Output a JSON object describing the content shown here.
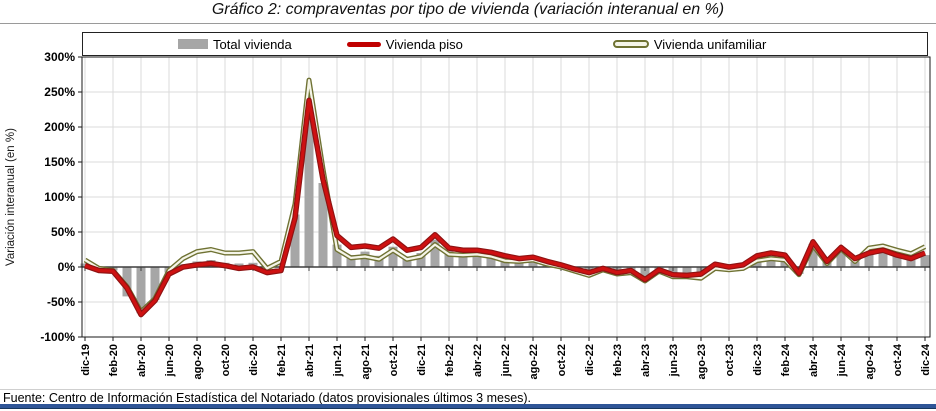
{
  "page": {
    "title": "Gráfico 2: compraventas por tipo de vivienda (variación interanual en %)",
    "footer": "Fuente: Centro de Información Estadística del Notariado (datos provisionales últimos 3 meses).",
    "accent_bar_color": "#2F5597",
    "background_color": "#FFFFFF"
  },
  "legend": {
    "position": "top",
    "items": [
      {
        "label": "Total vivienda",
        "swatch": "bar",
        "color": "#A6A6A6"
      },
      {
        "label": "Vivienda piso",
        "swatch": "thick-line",
        "color": "#C00000"
      },
      {
        "label": "Vivienda unifamiliar",
        "swatch": "outlined-line",
        "color": "#6F7233",
        "inner_color": "#F5F5E8"
      }
    ]
  },
  "chart_data": {
    "type": "bar",
    "subtype": "combo-bar-and-lines",
    "title": "Gráfico 2: compraventas por tipo de vivienda (variación interanual en %)",
    "xlabel": "",
    "ylabel": "Variación interanual (en %)",
    "ylim": [
      -100,
      300
    ],
    "ytick_step": 50,
    "ytick_labels": [
      "300%",
      "250%",
      "200%",
      "150%",
      "100%",
      "50%",
      "0%",
      "-50%",
      "-100%"
    ],
    "grid": true,
    "legend_position": "top",
    "xtick_shown_every": 2,
    "categories": [
      "dic-19",
      "ene-20",
      "feb-20",
      "mar-20",
      "abr-20",
      "may-20",
      "jun-20",
      "jul-20",
      "ago-20",
      "sep-20",
      "oct-20",
      "nov-20",
      "dic-20",
      "ene-21",
      "feb-21",
      "mar-21",
      "abr-21",
      "may-21",
      "jun-21",
      "jul-21",
      "ago-21",
      "sep-21",
      "oct-21",
      "nov-21",
      "dic-21",
      "ene-22",
      "feb-22",
      "mar-22",
      "abr-22",
      "may-22",
      "jun-22",
      "jul-22",
      "ago-22",
      "sep-22",
      "oct-22",
      "nov-22",
      "dic-22",
      "ene-23",
      "feb-23",
      "mar-23",
      "abr-23",
      "may-23",
      "jun-23",
      "jul-23",
      "ago-23",
      "sep-23",
      "oct-23",
      "nov-23",
      "dic-23",
      "ene-24",
      "feb-24",
      "mar-24",
      "abr-24",
      "may-24",
      "jun-24",
      "jul-24",
      "ago-24",
      "sep-24",
      "oct-24",
      "nov-24",
      "dic-24"
    ],
    "series": [
      {
        "name": "Total vivienda",
        "type": "bar",
        "color": "#A6A6A6",
        "values": [
          5,
          -3,
          -5,
          -42,
          -66,
          -47,
          -8,
          4,
          8,
          10,
          6,
          5,
          6,
          -2,
          0,
          75,
          235,
          120,
          32,
          17,
          22,
          16,
          29,
          15,
          20,
          39,
          23,
          22,
          21,
          18,
          12,
          10,
          12,
          6,
          2,
          -4,
          -10,
          -3,
          -9,
          -6,
          -18,
          -5,
          -12,
          -13,
          -12,
          1,
          -2,
          1,
          13,
          16,
          14,
          -10,
          33,
          7,
          22,
          8,
          19,
          20,
          15,
          10,
          17
        ]
      },
      {
        "name": "Vivienda piso",
        "type": "line",
        "color": "#C00000",
        "values": [
          2,
          -5,
          -6,
          -30,
          -68,
          -48,
          -10,
          0,
          3,
          5,
          2,
          -2,
          0,
          -8,
          -5,
          70,
          238,
          125,
          45,
          28,
          30,
          27,
          40,
          24,
          28,
          46,
          27,
          24,
          24,
          21,
          16,
          12,
          14,
          8,
          3,
          -3,
          -8,
          -2,
          -8,
          -5,
          -18,
          -4,
          -11,
          -12,
          -10,
          4,
          0,
          3,
          16,
          20,
          17,
          -9,
          36,
          8,
          28,
          12,
          20,
          24,
          17,
          12,
          20
        ]
      },
      {
        "name": "Vivienda unifamiliar",
        "type": "line",
        "color": "#6F7233",
        "inner_color": "#F5F5E8",
        "values": [
          10,
          -2,
          -5,
          -28,
          -64,
          -45,
          -5,
          12,
          22,
          25,
          20,
          20,
          22,
          -2,
          8,
          90,
          267,
          140,
          25,
          13,
          15,
          11,
          24,
          11,
          15,
          32,
          18,
          17,
          18,
          15,
          9,
          8,
          10,
          4,
          0,
          -6,
          -12,
          -4,
          -10,
          -8,
          -20,
          -6,
          -14,
          -14,
          -16,
          -2,
          -4,
          -2,
          9,
          12,
          10,
          -11,
          31,
          5,
          26,
          8,
          27,
          30,
          24,
          19,
          29
        ]
      }
    ]
  }
}
